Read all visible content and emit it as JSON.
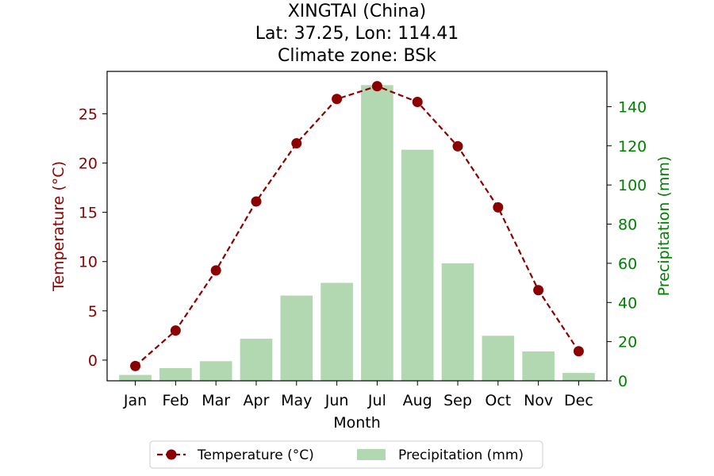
{
  "chart_data": {
    "type": "bar+line",
    "title_lines": [
      "XINGTAI (China)",
      "Lat: 37.25, Lon: 114.41",
      "Climate zone: BSk"
    ],
    "categories": [
      "Jan",
      "Feb",
      "Mar",
      "Apr",
      "May",
      "Jun",
      "Jul",
      "Aug",
      "Sep",
      "Oct",
      "Nov",
      "Dec"
    ],
    "xlabel": "Month",
    "temperature": {
      "name": "Temperature (°C)",
      "ylabel": "Temperature (°C)",
      "values": [
        -0.6,
        3.0,
        9.1,
        16.1,
        22.0,
        26.5,
        27.8,
        26.2,
        21.7,
        15.5,
        7.1,
        0.9
      ],
      "ylim": [
        -2.1,
        29.3
      ],
      "ticks": [
        0,
        5,
        10,
        15,
        20,
        25
      ],
      "color": "#8b0000"
    },
    "precipitation": {
      "name": "Precipitation (mm)",
      "ylabel": "Precipitation (mm)",
      "values": [
        3,
        6.5,
        10,
        21.5,
        43.5,
        50,
        151,
        118,
        60,
        23,
        15,
        4
      ],
      "ylim": [
        0,
        158
      ],
      "ticks": [
        0,
        20,
        40,
        60,
        80,
        100,
        120,
        140
      ],
      "color": "#b2d8b2",
      "axis_color": "#008000"
    },
    "legend": {
      "position": "bottom-center",
      "entries": [
        "Temperature (°C)",
        "Precipitation (mm)"
      ]
    }
  }
}
